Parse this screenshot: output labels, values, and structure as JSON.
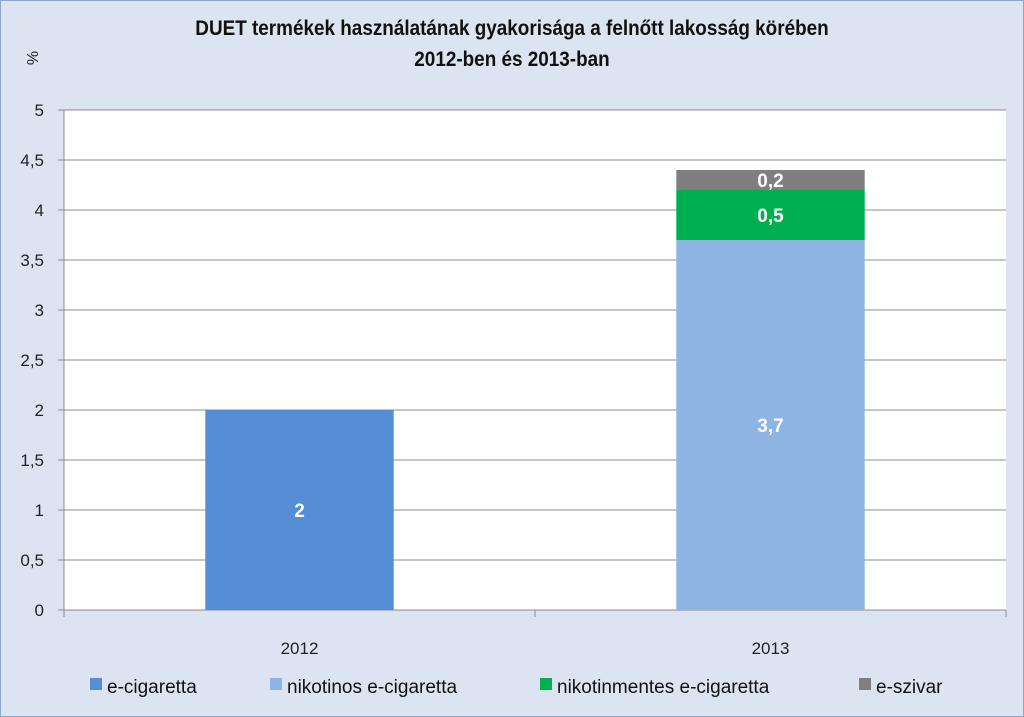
{
  "chart_data": {
    "type": "bar",
    "stacked": true,
    "title_lines": [
      "DUET termékek használatának gyakorisága a felnőtt lakosság körében",
      "2012-ben és 2013-ban"
    ],
    "ylabel": "%",
    "xlabel": "",
    "ylim": [
      0,
      5
    ],
    "ytick_step": 0.5,
    "ytick_labels": [
      "0",
      "0,5",
      "1",
      "1,5",
      "2",
      "2,5",
      "3",
      "3,5",
      "4",
      "4,5",
      "5"
    ],
    "grid": true,
    "legend_position": "bottom",
    "categories": [
      "2012",
      "2013"
    ],
    "series": [
      {
        "name": "e-cigaretta",
        "color": "#558ed5",
        "values": [
          2,
          0
        ],
        "labels": [
          "2",
          ""
        ]
      },
      {
        "name": "nikotinos e-cigaretta",
        "color": "#8eb4e3",
        "values": [
          0,
          3.7
        ],
        "labels": [
          "",
          "3,7"
        ]
      },
      {
        "name": "nikotinmentes e-cigaretta",
        "color": "#00b050",
        "values": [
          0,
          0.5
        ],
        "labels": [
          "",
          "0,5"
        ]
      },
      {
        "name": "e-szivar",
        "color": "#7f7f7f",
        "values": [
          0,
          0.2
        ],
        "labels": [
          "",
          "0,2"
        ]
      }
    ]
  }
}
